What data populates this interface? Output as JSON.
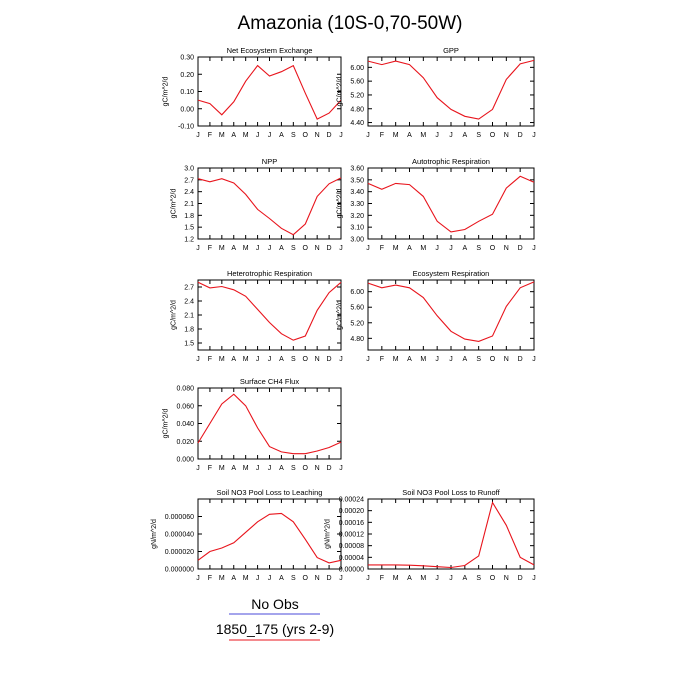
{
  "title": "Amazonia (10S-0,70-50W)",
  "colors": {
    "line": "#e8141c",
    "axis": "#000000",
    "legend_obs": "#4a4ad8",
    "legend_model": "#e8141c"
  },
  "legend": {
    "obs_label": "No Obs",
    "model_label": "1850_175 (yrs 2-9)"
  },
  "chart_data": [
    {
      "type": "line",
      "title": "Net Ecosystem Exchange",
      "ylabel": "gC/m^2/d",
      "categories": [
        "J",
        "F",
        "M",
        "A",
        "M",
        "J",
        "J",
        "A",
        "S",
        "O",
        "N",
        "D",
        "J"
      ],
      "ylim": [
        -0.1,
        0.3
      ],
      "yticks": [
        -0.1,
        0.0,
        0.1,
        0.2,
        0.3
      ],
      "ytick_labels": [
        "-0.10",
        "0.00",
        "0.10",
        "0.20",
        "0.30"
      ],
      "series": [
        {
          "values": [
            0.05,
            0.03,
            -0.035,
            0.04,
            0.16,
            0.25,
            0.19,
            0.215,
            0.25,
            0.09,
            -0.06,
            -0.025,
            0.05
          ]
        }
      ]
    },
    {
      "type": "line",
      "title": "GPP",
      "ylabel": "gC/m^2/d",
      "categories": [
        "J",
        "F",
        "M",
        "A",
        "M",
        "J",
        "J",
        "A",
        "S",
        "O",
        "N",
        "D",
        "J"
      ],
      "ylim": [
        4.3,
        6.3
      ],
      "yticks": [
        4.4,
        4.8,
        5.2,
        5.6,
        6.0
      ],
      "ytick_labels": [
        "4.40",
        "4.80",
        "5.20",
        "5.60",
        "6.00"
      ],
      "series": [
        {
          "values": [
            6.18,
            6.08,
            6.18,
            6.08,
            5.7,
            5.12,
            4.78,
            4.58,
            4.5,
            4.78,
            5.65,
            6.1,
            6.2
          ]
        }
      ]
    },
    {
      "type": "line",
      "title": "NPP",
      "ylabel": "gC/m^2/d",
      "categories": [
        "J",
        "F",
        "M",
        "A",
        "M",
        "J",
        "J",
        "A",
        "S",
        "O",
        "N",
        "D",
        "J"
      ],
      "ylim": [
        1.2,
        3.0
      ],
      "yticks": [
        1.2,
        1.5,
        1.8,
        2.1,
        2.4,
        2.7,
        3.0
      ],
      "ytick_labels": [
        "1.2",
        "1.5",
        "1.8",
        "2.1",
        "2.4",
        "2.7",
        "3.0"
      ],
      "series": [
        {
          "values": [
            2.73,
            2.65,
            2.73,
            2.62,
            2.33,
            1.95,
            1.72,
            1.47,
            1.31,
            1.58,
            2.28,
            2.6,
            2.75
          ]
        }
      ]
    },
    {
      "type": "line",
      "title": "Autotrophic Respiration",
      "ylabel": "gC/m^2/d",
      "categories": [
        "J",
        "F",
        "M",
        "A",
        "M",
        "J",
        "J",
        "A",
        "S",
        "O",
        "N",
        "D",
        "J"
      ],
      "ylim": [
        3.0,
        3.6
      ],
      "yticks": [
        3.0,
        3.1,
        3.2,
        3.3,
        3.4,
        3.5,
        3.6
      ],
      "ytick_labels": [
        "3.00",
        "3.10",
        "3.20",
        "3.30",
        "3.40",
        "3.50",
        "3.60"
      ],
      "series": [
        {
          "values": [
            3.47,
            3.42,
            3.47,
            3.46,
            3.36,
            3.15,
            3.06,
            3.08,
            3.15,
            3.21,
            3.43,
            3.53,
            3.48
          ]
        }
      ]
    },
    {
      "type": "line",
      "title": "Heterotrophic Respiration",
      "ylabel": "gC/m^2/d",
      "categories": [
        "J",
        "F",
        "M",
        "A",
        "M",
        "J",
        "J",
        "A",
        "S",
        "O",
        "N",
        "D",
        "J"
      ],
      "ylim": [
        1.35,
        2.85
      ],
      "yticks": [
        1.5,
        1.8,
        2.1,
        2.4,
        2.7
      ],
      "ytick_labels": [
        "1.5",
        "1.8",
        "2.1",
        "2.4",
        "2.7"
      ],
      "series": [
        {
          "values": [
            2.8,
            2.68,
            2.71,
            2.64,
            2.5,
            2.22,
            1.94,
            1.7,
            1.56,
            1.65,
            2.2,
            2.58,
            2.8
          ]
        }
      ]
    },
    {
      "type": "line",
      "title": "Ecosystem Respiration",
      "ylabel": "gC/m^2/d",
      "categories": [
        "J",
        "F",
        "M",
        "A",
        "M",
        "J",
        "J",
        "A",
        "S",
        "O",
        "N",
        "D",
        "J"
      ],
      "ylim": [
        4.5,
        6.3
      ],
      "yticks": [
        4.8,
        5.2,
        5.6,
        6.0
      ],
      "ytick_labels": [
        "4.80",
        "5.20",
        "5.60",
        "6.00"
      ],
      "series": [
        {
          "values": [
            6.22,
            6.1,
            6.17,
            6.1,
            5.85,
            5.38,
            4.98,
            4.78,
            4.72,
            4.86,
            5.62,
            6.1,
            6.25
          ]
        }
      ]
    },
    {
      "type": "line",
      "title": "Surface CH4 Flux",
      "ylabel": "gC/m^2/d",
      "categories": [
        "J",
        "F",
        "M",
        "A",
        "M",
        "J",
        "J",
        "A",
        "S",
        "O",
        "N",
        "D",
        "J"
      ],
      "ylim": [
        0.0,
        0.08
      ],
      "yticks": [
        0.0,
        0.02,
        0.04,
        0.06,
        0.08
      ],
      "ytick_labels": [
        "0.000",
        "0.020",
        "0.040",
        "0.060",
        "0.080"
      ],
      "series": [
        {
          "values": [
            0.018,
            0.04,
            0.062,
            0.073,
            0.06,
            0.035,
            0.014,
            0.008,
            0.006,
            0.006,
            0.009,
            0.013,
            0.019
          ]
        }
      ]
    },
    {
      "type": "line",
      "title": "Soil NO3 Pool Loss to Leaching",
      "ylabel": "gN/m^2/d",
      "categories": [
        "J",
        "F",
        "M",
        "A",
        "M",
        "J",
        "J",
        "A",
        "S",
        "O",
        "N",
        "D",
        "J"
      ],
      "ylim": [
        0.0,
        8e-05
      ],
      "yticks": [
        0.0,
        2e-05,
        4e-05,
        6e-05
      ],
      "ytick_labels": [
        "0.000000",
        "0.000020",
        "0.000040",
        "0.000060"
      ],
      "series": [
        {
          "values": [
            1e-05,
            2e-05,
            2.4e-05,
            3e-05,
            4.2e-05,
            5.4e-05,
            6.25e-05,
            6.35e-05,
            5.4e-05,
            3.4e-05,
            1.3e-05,
            7e-06,
            1e-05
          ]
        }
      ]
    },
    {
      "type": "line",
      "title": "Soil NO3 Pool Loss to Runoff",
      "ylabel": "gN/m^2/d",
      "categories": [
        "J",
        "F",
        "M",
        "A",
        "M",
        "J",
        "J",
        "A",
        "S",
        "O",
        "N",
        "D",
        "J"
      ],
      "ylim": [
        0.0,
        0.00024
      ],
      "yticks": [
        0.0,
        4e-05,
        8e-05,
        0.00012,
        0.00016,
        0.0002,
        0.00024
      ],
      "ytick_labels": [
        "0.00000",
        "0.00004",
        "0.00008",
        "0.00012",
        "0.00016",
        "0.00020",
        "0.00024"
      ],
      "series": [
        {
          "values": [
            1.4e-05,
            1.4e-05,
            1.4e-05,
            1.3e-05,
            1.1e-05,
            8e-06,
            5e-06,
            1.2e-05,
            4.5e-05,
            0.000228,
            0.00015,
            4e-05,
            1.4e-05
          ]
        }
      ]
    }
  ]
}
